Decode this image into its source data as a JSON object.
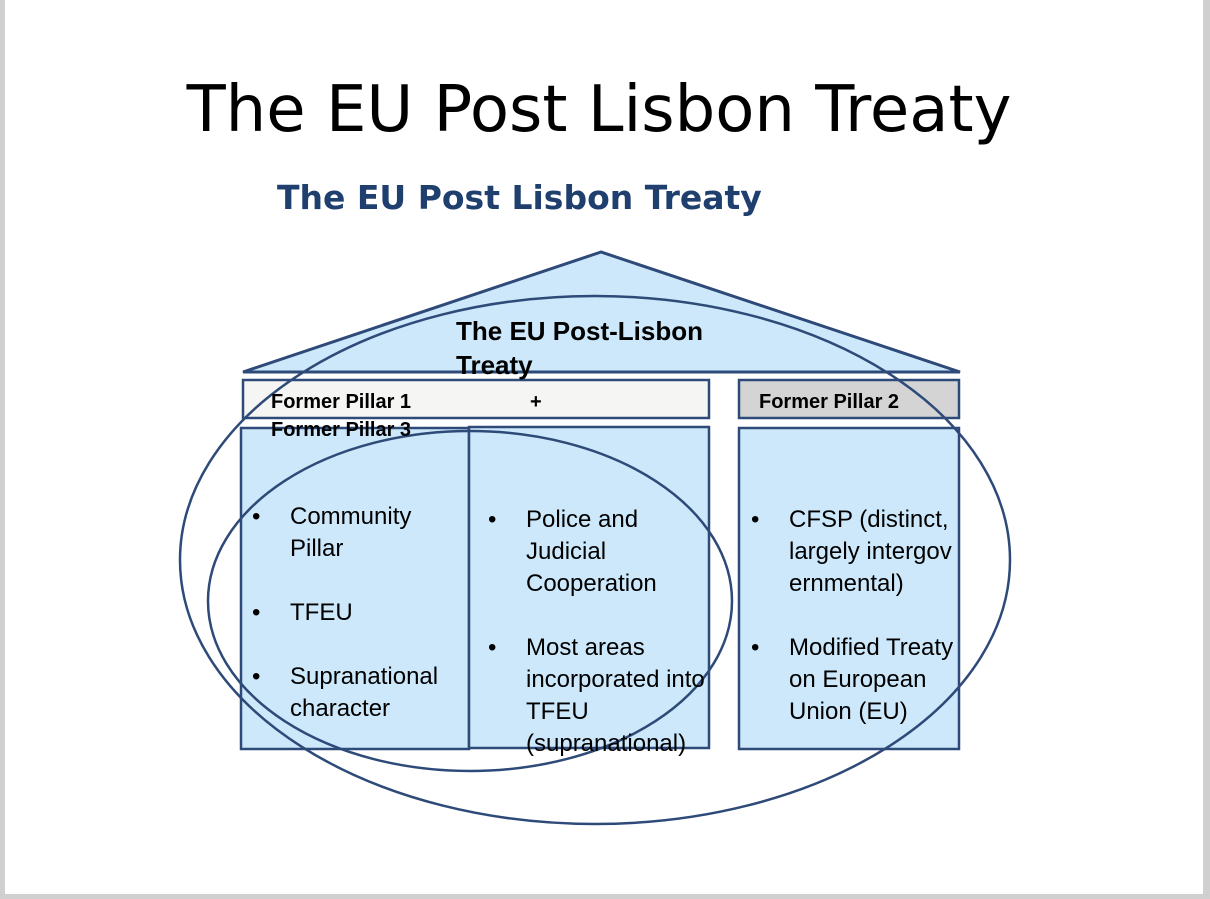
{
  "slide_title": "The EU Post Lisbon Treaty",
  "diagram_heading": "The EU Post Lisbon Treaty",
  "roof_label": "The EU Post-Lisbon Treaty",
  "bars": {
    "left_line1": "Former Pillar 1",
    "plus": "+",
    "left_line2": "Former Pillar 3",
    "right": "Former Pillar 2"
  },
  "bullet_glyph": "•",
  "columns": [
    {
      "items": [
        "Community Pillar",
        "TFEU",
        "Supranational character"
      ]
    },
    {
      "items": [
        "Police and Judicial Cooperation",
        "Most areas incorporated into TFEU (supranational)"
      ]
    },
    {
      "items": [
        "CFSP (distinct, largely intergovernmental)",
        "Modified Treaty on European Union (EU)"
      ]
    }
  ],
  "colors": {
    "fill_light_blue": "#cce8fa",
    "outline_navy": "#2e4a78",
    "heading_blue": "#1f3f6e",
    "bar_white": "#f5f5f3",
    "bar_grey": "#d4d4d4"
  }
}
